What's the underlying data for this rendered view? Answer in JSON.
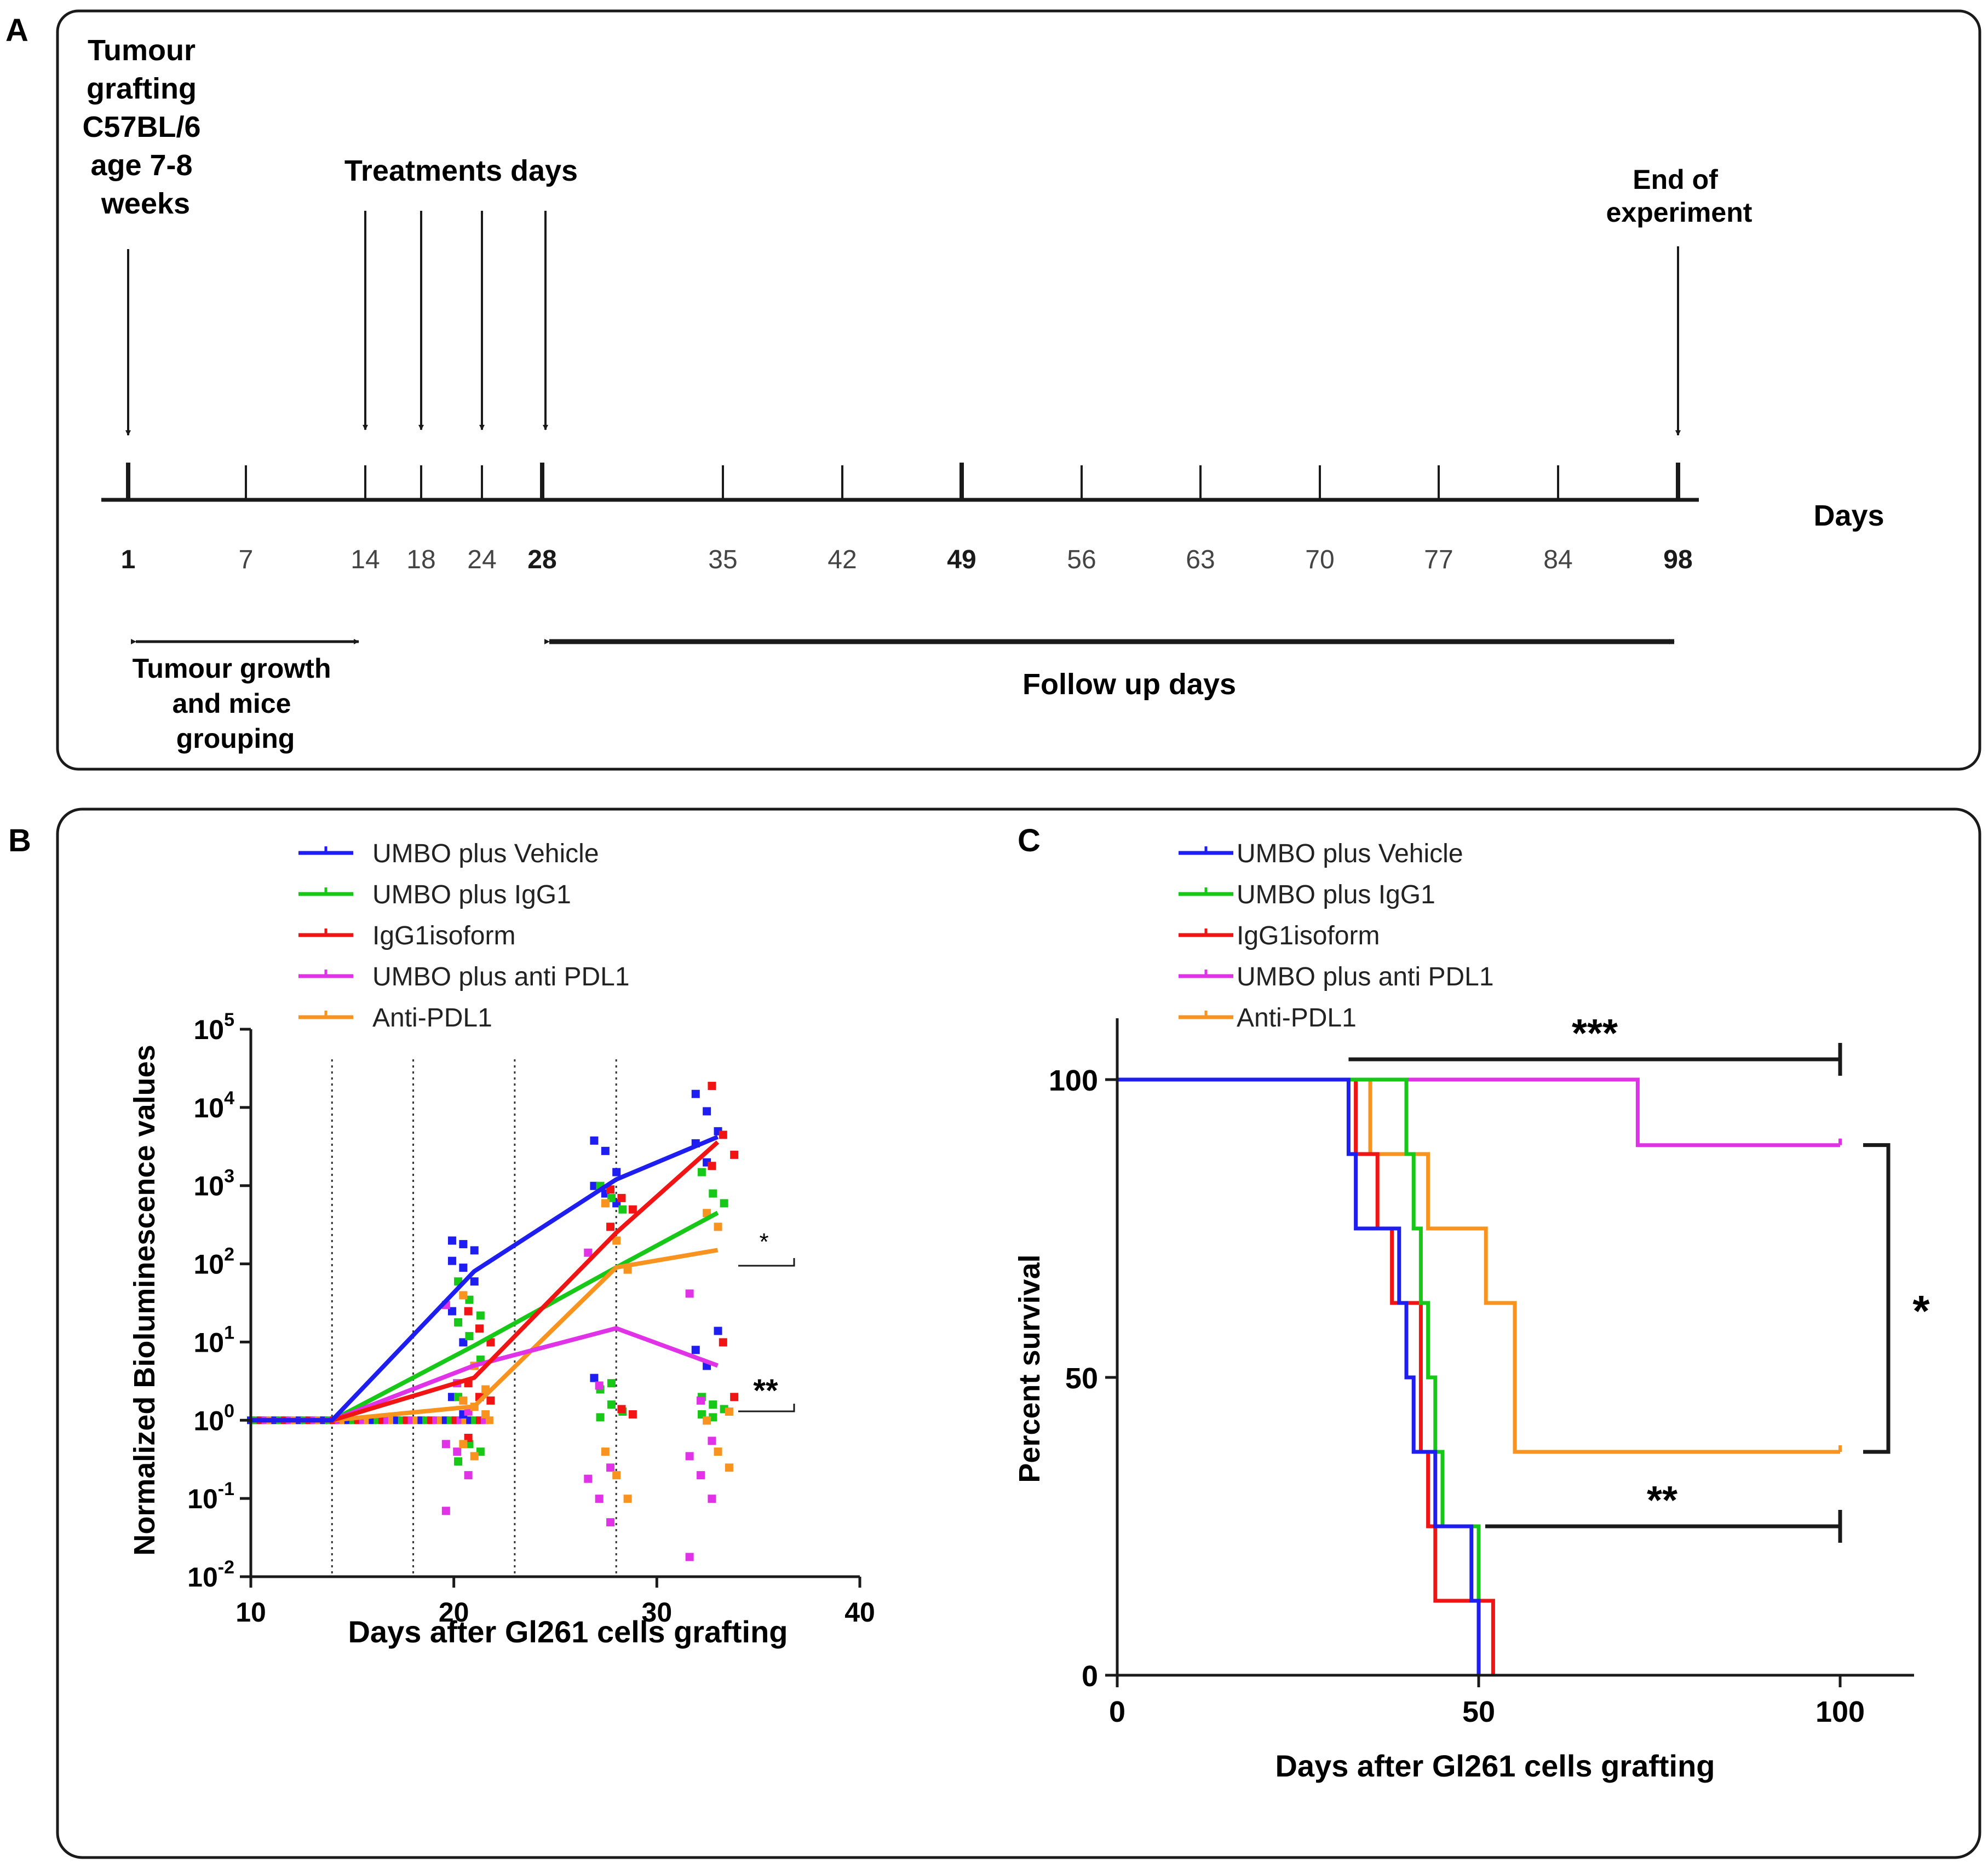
{
  "panel_a": {
    "letter": "A",
    "grafting_label": [
      "Tumour",
      "grafting",
      "C57BL/6",
      "age 7-8",
      "weeks"
    ],
    "treatments_label": "Treatments days",
    "end_label": [
      "End of",
      "experiment"
    ],
    "days_label": "Days",
    "ticks": [
      "1",
      "7",
      "14",
      "18",
      "24",
      "28",
      "35",
      "42",
      "49",
      "56",
      "63",
      "70",
      "77",
      "84",
      "98"
    ],
    "bold_ticks": [
      "1",
      "28",
      "49",
      "98"
    ],
    "growth_label": [
      "Tumour growth",
      "and mice",
      "grouping"
    ],
    "followup_label": "Follow up days"
  },
  "panel_b": {
    "letter": "B"
  },
  "panel_c": {
    "letter": "C"
  },
  "series_colors": {
    "UMBO plus Vehicle": "#1e1ef0",
    "UMBO plus IgG1": "#18c818",
    "IgG1isoform": "#f01414",
    "UMBO plus anti PDL1": "#e032e6",
    "Anti-PDL1": "#f7931e"
  },
  "chart_data": [
    {
      "type": "line",
      "panel": "B",
      "title": "",
      "xlabel": "Days after Gl261 cells grafting",
      "ylabel": "Normalized Bioluminescence values",
      "xlim": [
        10,
        40
      ],
      "xticks": [
        "10",
        "20",
        "30",
        "40"
      ],
      "yscale": "log",
      "ylim": [
        0.01,
        100000
      ],
      "yticks": [
        {
          "base": "10",
          "exp": "-2"
        },
        {
          "base": "10",
          "exp": "-1"
        },
        {
          "base": "10",
          "exp": "0"
        },
        {
          "base": "10",
          "exp": "1"
        },
        {
          "base": "10",
          "exp": "2"
        },
        {
          "base": "10",
          "exp": "3"
        },
        {
          "base": "10",
          "exp": "4"
        },
        {
          "base": "10",
          "exp": "5"
        }
      ],
      "vlines": [
        14,
        18,
        23,
        28
      ],
      "legend": [
        "UMBO plus Vehicle",
        "UMBO plus IgG1",
        "IgG1isoform",
        "UMBO plus anti PDL1",
        "Anti-PDL1"
      ],
      "legend_position": "top-left",
      "series": [
        {
          "name": "UMBO plus Vehicle",
          "x": [
            10,
            14,
            21,
            28,
            33
          ],
          "values": [
            1,
            1,
            80,
            1200,
            4200
          ]
        },
        {
          "name": "UMBO plus IgG1",
          "x": [
            10,
            14,
            21,
            28,
            33
          ],
          "values": [
            1,
            1,
            9,
            90,
            450
          ]
        },
        {
          "name": "IgG1isoform",
          "x": [
            10,
            14,
            21,
            28,
            33
          ],
          "values": [
            1,
            1,
            3.5,
            250,
            3600
          ]
        },
        {
          "name": "UMBO plus anti PDL1",
          "x": [
            10,
            14,
            21,
            28,
            33
          ],
          "values": [
            1,
            1,
            5,
            15,
            5
          ]
        },
        {
          "name": "Anti-PDL1",
          "x": [
            10,
            14,
            21,
            28,
            33
          ],
          "values": [
            1,
            1,
            1.5,
            90,
            150
          ]
        }
      ],
      "points": [
        {
          "series": "UMBO plus Vehicle",
          "day": 21,
          "values": [
            200,
            180,
            150,
            110,
            90,
            60,
            25,
            10,
            5,
            2,
            1.2
          ]
        },
        {
          "series": "UMBO plus Vehicle",
          "day": 28,
          "values": [
            3800,
            2800,
            1500,
            1000,
            800,
            600,
            3.5
          ]
        },
        {
          "series": "UMBO plus Vehicle",
          "day": 33,
          "values": [
            15000,
            9000,
            5000,
            3500,
            2000,
            14,
            8,
            5
          ]
        },
        {
          "series": "UMBO plus IgG1",
          "day": 21,
          "values": [
            60,
            35,
            22,
            18,
            12,
            6,
            2,
            0.5,
            0.4,
            0.3
          ]
        },
        {
          "series": "UMBO plus IgG1",
          "day": 28,
          "values": [
            1000,
            700,
            500,
            2.5,
            1.6,
            1.3,
            1.1,
            3
          ]
        },
        {
          "series": "UMBO plus IgG1",
          "day": 33,
          "values": [
            1500,
            800,
            600,
            2,
            1.6,
            1.4,
            1.2,
            1.1
          ]
        },
        {
          "series": "IgG1isoform",
          "day": 21,
          "values": [
            25,
            15,
            10,
            3,
            2,
            1.8,
            0.6
          ]
        },
        {
          "series": "IgG1isoform",
          "day": 28,
          "values": [
            900,
            700,
            500,
            300,
            1.4,
            1.2
          ]
        },
        {
          "series": "IgG1isoform",
          "day": 33,
          "values": [
            19000,
            4500,
            2500,
            1800,
            10,
            2
          ]
        },
        {
          "series": "UMBO plus anti PDL1",
          "day": 21,
          "values": [
            30,
            3,
            1.3,
            0.5,
            0.4,
            0.2,
            0.07
          ]
        },
        {
          "series": "UMBO plus anti PDL1",
          "day": 28,
          "values": [
            140,
            2.8,
            0.25,
            0.18,
            0.1,
            0.05
          ]
        },
        {
          "series": "UMBO plus anti PDL1",
          "day": 33,
          "values": [
            42,
            1.8,
            0.55,
            0.35,
            0.2,
            0.1,
            0.018
          ]
        },
        {
          "series": "Anti-PDL1",
          "day": 21,
          "values": [
            40,
            5,
            2.5,
            1.8,
            1.5,
            1.2,
            0.5,
            0.35
          ]
        },
        {
          "series": "Anti-PDL1",
          "day": 28,
          "values": [
            600,
            200,
            85,
            0.4,
            0.2,
            0.1
          ]
        },
        {
          "series": "Anti-PDL1",
          "day": 33,
          "values": [
            450,
            300,
            1.3,
            1,
            0.4,
            0.25
          ]
        }
      ],
      "annotations": [
        {
          "text": "*",
          "between": [
            "Anti-PDL1",
            "UMBO plus IgG1"
          ]
        },
        {
          "text": "**",
          "between": [
            "UMBO plus anti PDL1",
            "UMBO plus IgG1"
          ]
        }
      ]
    },
    {
      "type": "line",
      "subtype": "kaplan-meier",
      "panel": "C",
      "title": "",
      "xlabel": "Days after Gl261 cells grafting",
      "ylabel": "Percent survival",
      "xlim": [
        0,
        110
      ],
      "ylim": [
        0,
        110
      ],
      "xticks": [
        "0",
        "50",
        "100"
      ],
      "yticks": [
        "0",
        "50",
        "100"
      ],
      "legend": [
        "UMBO plus Vehicle",
        "UMBO plus IgG1",
        "IgG1isoform",
        "UMBO plus anti PDL1",
        "Anti-PDL1"
      ],
      "legend_position": "top-left",
      "series": [
        {
          "name": "UMBO plus Vehicle",
          "steps": [
            [
              0,
              100
            ],
            [
              32,
              87.5
            ],
            [
              33,
              75
            ],
            [
              39,
              62.5
            ],
            [
              40,
              50
            ],
            [
              41,
              37.5
            ],
            [
              44,
              25
            ],
            [
              49,
              12.5
            ],
            [
              50,
              0
            ]
          ]
        },
        {
          "name": "UMBO plus IgG1",
          "steps": [
            [
              0,
              100
            ],
            [
              40,
              87.5
            ],
            [
              41,
              75
            ],
            [
              42,
              62.5
            ],
            [
              43,
              50
            ],
            [
              44,
              37.5
            ],
            [
              45,
              25
            ],
            [
              50,
              0
            ]
          ]
        },
        {
          "name": "IgG1isoform",
          "steps": [
            [
              0,
              100
            ],
            [
              33,
              87.5
            ],
            [
              36,
              75
            ],
            [
              38,
              62.5
            ],
            [
              42,
              37.5
            ],
            [
              43,
              25
            ],
            [
              44,
              12.5
            ],
            [
              52,
              0
            ]
          ],
          "end": 52
        },
        {
          "name": "UMBO plus anti PDL1",
          "steps": [
            [
              0,
              100
            ],
            [
              72,
              89
            ],
            [
              100,
              89
            ]
          ],
          "end": 100
        },
        {
          "name": "Anti-PDL1",
          "steps": [
            [
              0,
              100
            ],
            [
              35,
              87.5
            ],
            [
              43,
              75
            ],
            [
              51,
              62.5
            ],
            [
              55,
              37.5
            ],
            [
              100,
              37.5
            ]
          ],
          "end": 100
        }
      ],
      "annotations": [
        {
          "text": "***",
          "from_x": 32,
          "to_x": 100,
          "y": 103
        },
        {
          "text": "*",
          "from_y": 89,
          "to_y": 37.5,
          "x": 105
        },
        {
          "text": "**",
          "from_x": 50,
          "to_x": 100,
          "y": 25
        }
      ]
    }
  ]
}
